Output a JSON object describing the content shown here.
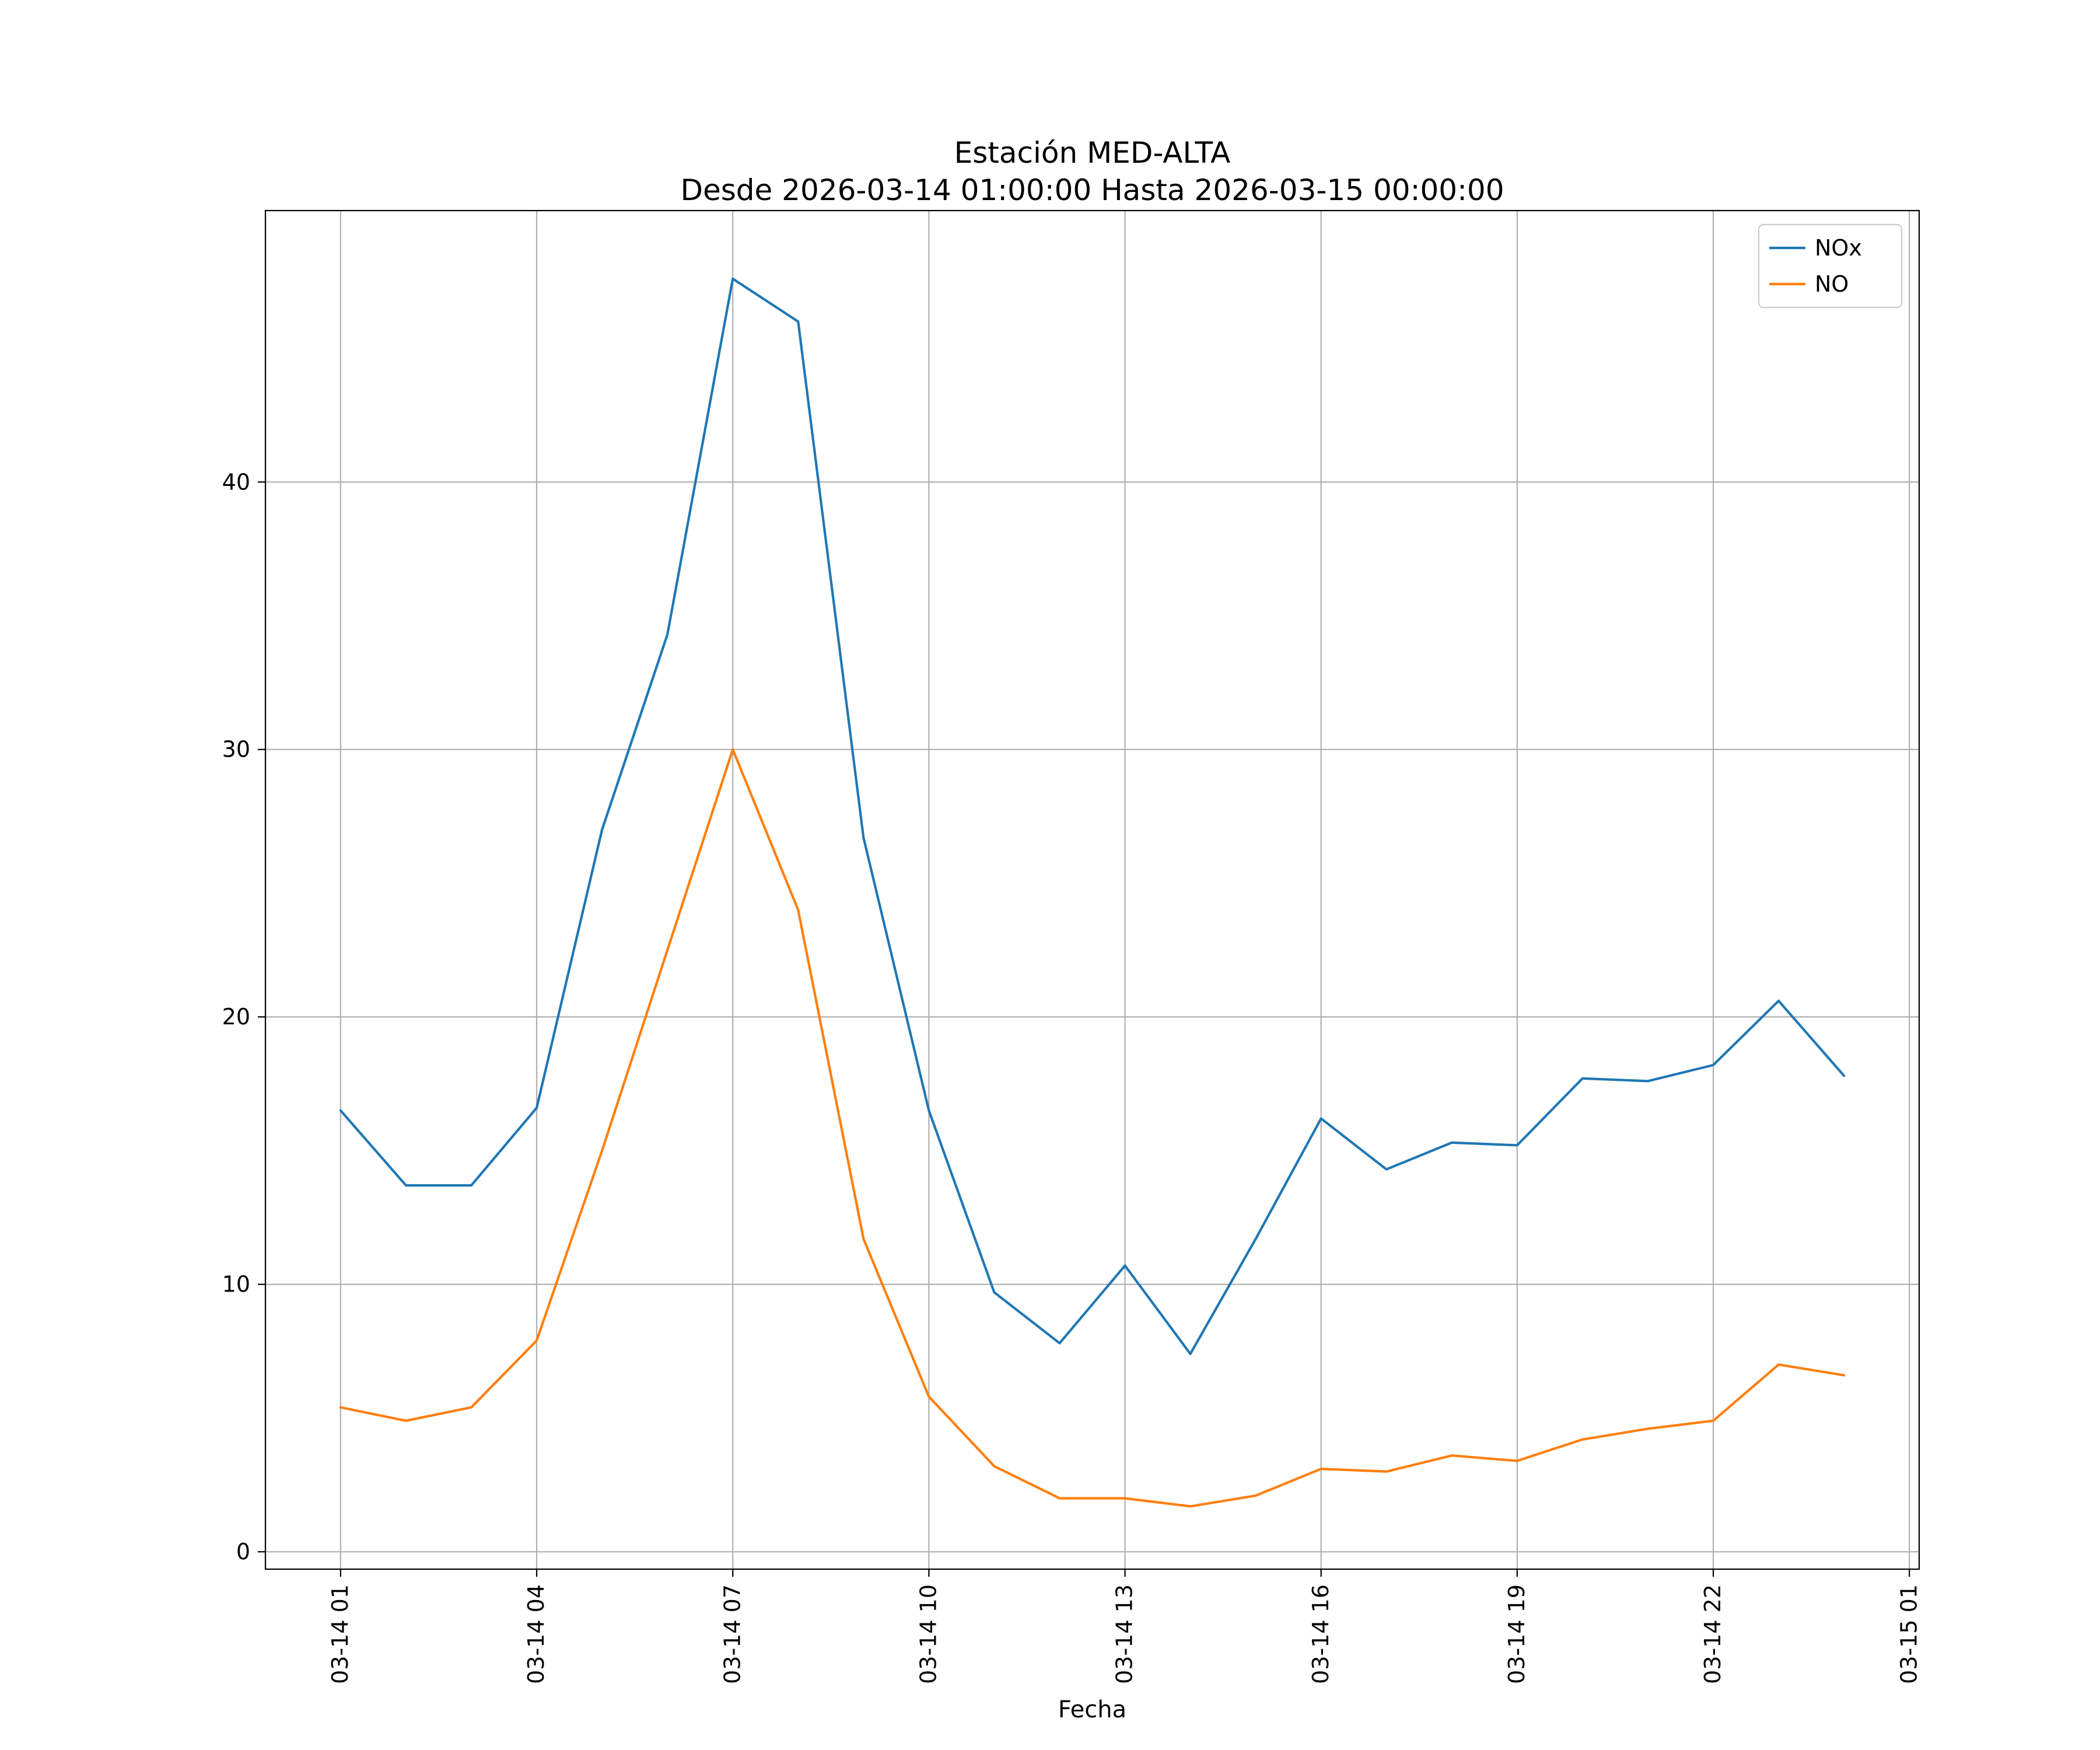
{
  "figure": {
    "title": "Estación MED-ALTA",
    "subtitle": "Desde 2026-03-14 01:00:00 Hasta 2026-03-15 00:00:00",
    "xlabel": "Fecha"
  },
  "chart_data": {
    "type": "line",
    "title": "Estación MED-ALTA",
    "subtitle": "Desde 2026-03-14 01:00:00 Hasta 2026-03-15 00:00:00",
    "xlabel": "Fecha",
    "ylabel": "",
    "x_hours": [
      1,
      2,
      3,
      4,
      5,
      6,
      7,
      8,
      9,
      10,
      11,
      12,
      13,
      14,
      15,
      16,
      17,
      18,
      19,
      20,
      21,
      22,
      23,
      24
    ],
    "series": [
      {
        "name": "NOx",
        "color": "#1f77b4",
        "values": [
          16.5,
          13.7,
          13.7,
          16.6,
          27.0,
          34.3,
          47.6,
          46.0,
          26.7,
          16.5,
          9.7,
          7.8,
          10.7,
          7.4,
          11.7,
          16.2,
          14.3,
          15.3,
          15.2,
          17.7,
          17.6,
          18.2,
          20.6,
          17.8
        ]
      },
      {
        "name": "NO",
        "color": "#ff7f0e",
        "values": [
          5.4,
          4.9,
          5.4,
          7.9,
          15.0,
          22.5,
          30.0,
          24.0,
          11.7,
          5.8,
          3.2,
          2.0,
          2.0,
          1.7,
          2.1,
          3.1,
          3.0,
          3.6,
          3.4,
          4.2,
          4.6,
          4.9,
          7.0,
          6.6
        ]
      }
    ],
    "xtick_positions": [
      1,
      4,
      7,
      10,
      13,
      16,
      19,
      22,
      25
    ],
    "xtick_labels": [
      "03-14 01",
      "03-14 04",
      "03-14 07",
      "03-14 10",
      "03-14 13",
      "03-14 16",
      "03-14 19",
      "03-14 22",
      "03-15 01"
    ],
    "ytick_values": [
      0,
      10,
      20,
      30,
      40
    ],
    "xlim": [
      -0.15,
      25.15
    ],
    "ylim": [
      -0.65,
      50.15
    ],
    "grid": true,
    "grid_color": "#b0b0b0",
    "legend": {
      "position": "upper right",
      "entries": [
        "NOx",
        "NO"
      ]
    }
  }
}
